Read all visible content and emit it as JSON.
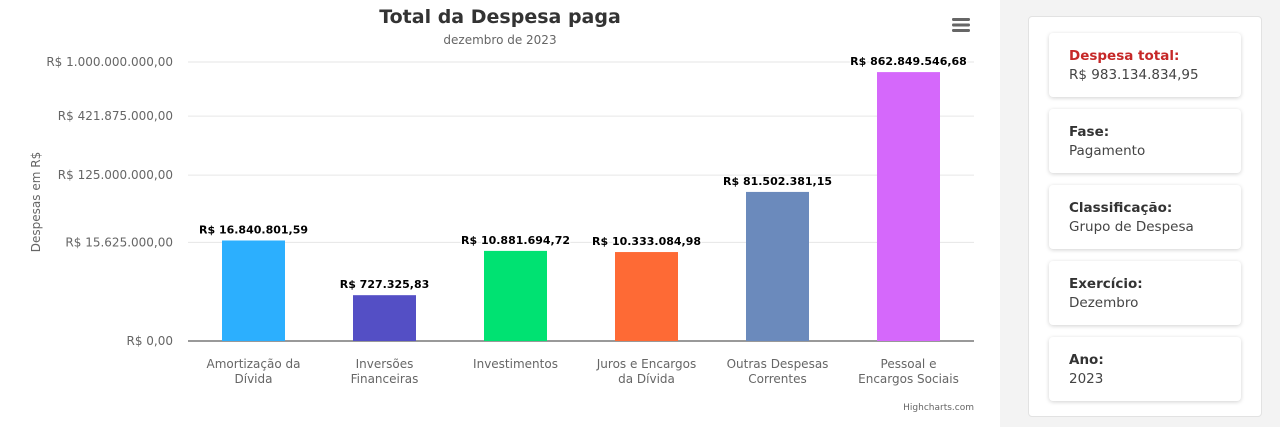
{
  "chart": {
    "title": "Total da Despesa paga",
    "subtitle": "dezembro de 2023",
    "menu_icon": "hamburger-menu-icon",
    "credits": "Highcharts.com"
  },
  "chart_data": {
    "type": "bar",
    "title": "Total da Despesa paga",
    "subtitle": "dezembro de 2023",
    "ylabel": "Despesas em R$",
    "xlabel": "",
    "yscale": "power (exponent 0.25)",
    "ylim": [
      0,
      1000000000
    ],
    "yticks": [
      0,
      15625000,
      125000000,
      421875000,
      1000000000
    ],
    "ytick_labels": [
      "R$ 0,00",
      "R$ 15.625.000,00",
      "R$ 125.000.000,00",
      "R$ 421.875.000,00",
      "R$ 1.000.000.000,00"
    ],
    "grid": true,
    "legend": "none",
    "categories": [
      [
        "Amortização da",
        "Dívida"
      ],
      [
        "Inversões",
        "Financeiras"
      ],
      [
        "Investimentos"
      ],
      [
        "Juros e Encargos",
        "da Dívida"
      ],
      [
        "Outras Despesas",
        "Correntes"
      ],
      [
        "Pessoal e",
        "Encargos Sociais"
      ]
    ],
    "values": [
      16840801.59,
      727325.83,
      10881694.72,
      10333084.98,
      81502381.15,
      862849546.68
    ],
    "data_labels": [
      "R$ 16.840.801,59",
      "R$ 727.325,83",
      "R$ 10.881.694,72",
      "R$ 10.333.084,98",
      "R$ 81.502.381,15",
      "R$ 862.849.546,68"
    ],
    "colors": [
      "#2caffe",
      "#544fc5",
      "#00e272",
      "#fe6a35",
      "#6b8abc",
      "#d568fb"
    ]
  },
  "info": {
    "items": [
      {
        "label": "Despesa total:",
        "value": "R$ 983.134.834,95"
      },
      {
        "label": "Fase:",
        "value": "Pagamento"
      },
      {
        "label": "Classificação:",
        "value": "Grupo de Despesa"
      },
      {
        "label": "Exercício:",
        "value": "Dezembro"
      },
      {
        "label": "Ano:",
        "value": "2023"
      }
    ],
    "highlight_color": "#c62828"
  }
}
